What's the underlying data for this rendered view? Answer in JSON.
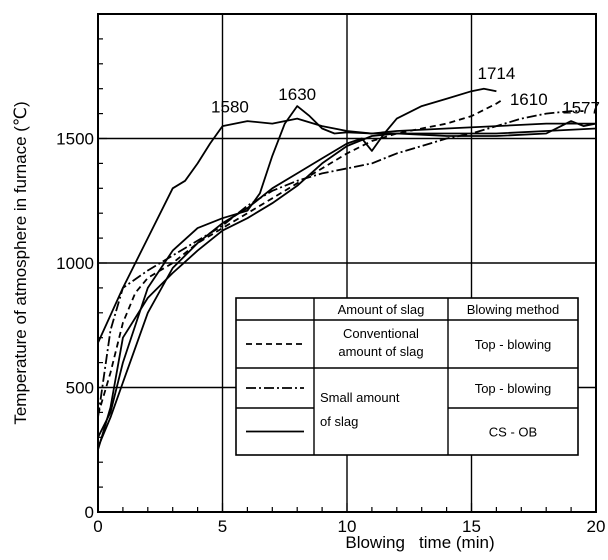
{
  "chart_data": {
    "type": "line",
    "xlabel": "Blowing   time (min)",
    "ylabel": "Temperature of atmosphere in furnace (℃)",
    "xlim": [
      0,
      20
    ],
    "ylim": [
      0,
      2000
    ],
    "x_ticks": [
      0,
      5,
      10,
      15,
      20
    ],
    "y_ticks": [
      0,
      500,
      1000,
      1500
    ],
    "grid": true,
    "series": [
      {
        "name": "Conventional amount of slag / Top - blowing",
        "style": "dashed",
        "points": [
          [
            0,
            390
          ],
          [
            0.5,
            560
          ],
          [
            1,
            760
          ],
          [
            1.5,
            880
          ],
          [
            2,
            940
          ],
          [
            3,
            1000
          ],
          [
            4,
            1080
          ],
          [
            5,
            1140
          ],
          [
            6,
            1200
          ],
          [
            7,
            1260
          ],
          [
            8,
            1320
          ],
          [
            9,
            1380
          ],
          [
            10,
            1440
          ],
          [
            11,
            1490
          ],
          [
            12,
            1520
          ],
          [
            13,
            1540
          ],
          [
            14,
            1560
          ],
          [
            15,
            1590
          ],
          [
            16,
            1640
          ],
          [
            16.3,
            1660
          ]
        ]
      },
      {
        "name": "Small amount of slag / Top - blowing",
        "style": "dash-dot",
        "points": [
          [
            0,
            380
          ],
          [
            0.5,
            730
          ],
          [
            1,
            900
          ],
          [
            2,
            970
          ],
          [
            3,
            1030
          ],
          [
            4,
            1090
          ],
          [
            5,
            1150
          ],
          [
            6,
            1230
          ],
          [
            7,
            1290
          ],
          [
            8,
            1330
          ],
          [
            9,
            1360
          ],
          [
            10,
            1380
          ],
          [
            11,
            1400
          ],
          [
            12,
            1440
          ],
          [
            13,
            1470
          ],
          [
            14,
            1500
          ],
          [
            15,
            1520
          ],
          [
            16,
            1550
          ],
          [
            17,
            1580
          ],
          [
            18,
            1600
          ],
          [
            19,
            1610
          ],
          [
            19.5,
            1610
          ]
        ]
      },
      {
        "name": "Small amount of slag / CS - OB (1580)",
        "style": "solid",
        "points": [
          [
            0,
            680
          ],
          [
            0.5,
            790
          ],
          [
            1,
            900
          ],
          [
            2,
            1100
          ],
          [
            3,
            1300
          ],
          [
            3.5,
            1330
          ],
          [
            4,
            1400
          ],
          [
            4.5,
            1480
          ],
          [
            5,
            1550
          ],
          [
            6,
            1570
          ],
          [
            7,
            1560
          ],
          [
            8,
            1580
          ],
          [
            9,
            1550
          ],
          [
            10,
            1530
          ],
          [
            11,
            1520
          ],
          [
            12,
            1520
          ],
          [
            14,
            1520
          ],
          [
            16,
            1520
          ],
          [
            18,
            1530
          ],
          [
            20,
            1540
          ]
        ]
      },
      {
        "name": "Small amount of slag / CS - OB (1630)",
        "style": "solid",
        "points": [
          [
            0,
            300
          ],
          [
            0.5,
            400
          ],
          [
            1,
            600
          ],
          [
            2,
            900
          ],
          [
            3,
            1050
          ],
          [
            4,
            1140
          ],
          [
            5,
            1180
          ],
          [
            6,
            1210
          ],
          [
            6.5,
            1280
          ],
          [
            7,
            1430
          ],
          [
            7.5,
            1560
          ],
          [
            8,
            1630
          ],
          [
            8.5,
            1590
          ],
          [
            9,
            1540
          ],
          [
            9.5,
            1520
          ],
          [
            10,
            1525
          ],
          [
            11,
            1520
          ],
          [
            12,
            1530
          ],
          [
            14,
            1540
          ],
          [
            16,
            1550
          ],
          [
            18,
            1560
          ],
          [
            20,
            1560
          ]
        ]
      },
      {
        "name": "Small amount of slag / CS - OB (1714)",
        "style": "solid",
        "points": [
          [
            0,
            260
          ],
          [
            0.5,
            380
          ],
          [
            1,
            520
          ],
          [
            2,
            800
          ],
          [
            3,
            980
          ],
          [
            4,
            1080
          ],
          [
            5,
            1160
          ],
          [
            6,
            1220
          ],
          [
            7,
            1300
          ],
          [
            8,
            1360
          ],
          [
            9,
            1420
          ],
          [
            10,
            1480
          ],
          [
            10.6,
            1500
          ],
          [
            11,
            1450
          ],
          [
            11.5,
            1520
          ],
          [
            12,
            1580
          ],
          [
            13,
            1630
          ],
          [
            14,
            1660
          ],
          [
            15,
            1690
          ],
          [
            15.5,
            1700
          ],
          [
            16,
            1690
          ]
        ]
      },
      {
        "name": "Small amount of slag / CS - OB (1577)",
        "style": "solid",
        "points": [
          [
            0,
            250
          ],
          [
            0.5,
            420
          ],
          [
            1,
            700
          ],
          [
            2,
            860
          ],
          [
            3,
            960
          ],
          [
            4,
            1050
          ],
          [
            5,
            1130
          ],
          [
            6,
            1180
          ],
          [
            7,
            1240
          ],
          [
            8,
            1310
          ],
          [
            9,
            1400
          ],
          [
            10,
            1470
          ],
          [
            11,
            1510
          ],
          [
            12,
            1520
          ],
          [
            14,
            1510
          ],
          [
            16,
            1510
          ],
          [
            18,
            1520
          ],
          [
            19,
            1570
          ],
          [
            19.5,
            1550
          ],
          [
            20,
            1560
          ]
        ]
      }
    ],
    "annotations": [
      {
        "text": "1580",
        "x": 5.3,
        "y": 1580
      },
      {
        "text": "1630",
        "x": 8.0,
        "y": 1630
      },
      {
        "text": "1714",
        "x": 16.0,
        "y": 1714
      },
      {
        "text": "1610",
        "x": 17.3,
        "y": 1610
      },
      {
        "text": "1577",
        "x": 19.4,
        "y": 1577
      }
    ],
    "legend": {
      "position": "lower-right",
      "header": {
        "col2": "Amount of slag",
        "col3": "Blowing method"
      },
      "rows": [
        {
          "style": "dashed",
          "slag": "Conventional\namount of slag",
          "method": "Top - blowing"
        },
        {
          "style": "dash-dot",
          "slag": "Small amount\nof slag",
          "method": "Top - blowing"
        },
        {
          "style": "solid",
          "slag": "",
          "method": "CS - OB"
        }
      ]
    }
  }
}
